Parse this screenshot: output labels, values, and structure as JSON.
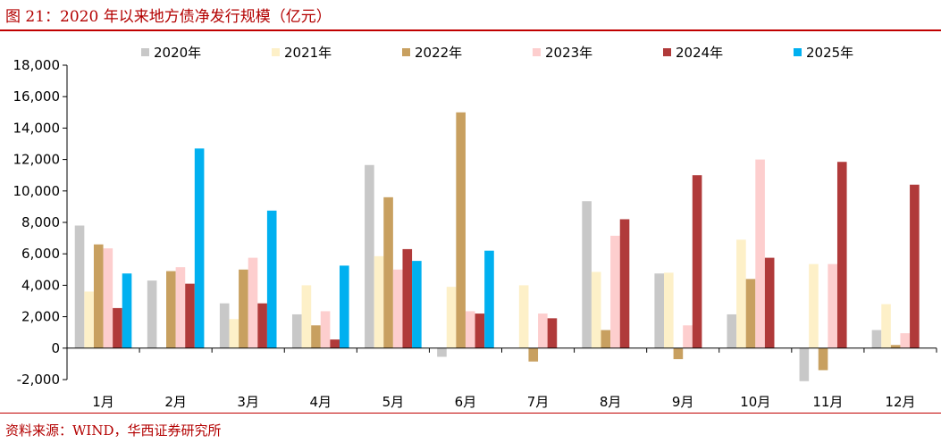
{
  "header": {
    "title": "图 21：2020 年以来地方债净发行规模（亿元）"
  },
  "footer": {
    "source": "资料来源：WIND，华西证券研究所"
  },
  "colors": {
    "rule": "#c00000",
    "series": [
      "#c8c8c8",
      "#fdf0c8",
      "#c8a060",
      "#fdcece",
      "#b03a3a",
      "#00b0f0"
    ]
  },
  "chart_data": {
    "type": "bar",
    "categories": [
      "1月",
      "2月",
      "3月",
      "4月",
      "5月",
      "6月",
      "7月",
      "8月",
      "9月",
      "10月",
      "11月",
      "12月"
    ],
    "series": [
      {
        "name": "2020年",
        "values": [
          7800,
          4300,
          2850,
          2150,
          11650,
          -550,
          null,
          9350,
          4750,
          2150,
          -2100,
          1150
        ]
      },
      {
        "name": "2021年",
        "values": [
          3600,
          null,
          1850,
          4000,
          5850,
          3900,
          4000,
          4850,
          4800,
          6900,
          5350,
          2800
        ]
      },
      {
        "name": "2022年",
        "values": [
          6600,
          4900,
          5000,
          1450,
          9600,
          15000,
          -850,
          1150,
          -700,
          4400,
          -1400,
          200
        ]
      },
      {
        "name": "2023年",
        "values": [
          6350,
          5150,
          5750,
          2350,
          5000,
          2350,
          2200,
          7150,
          1450,
          12000,
          5350,
          950
        ]
      },
      {
        "name": "2024年",
        "values": [
          2550,
          4100,
          2850,
          550,
          6300,
          2200,
          1900,
          8200,
          11000,
          5750,
          11850,
          10400
        ]
      },
      {
        "name": "2025年",
        "values": [
          4750,
          12700,
          8750,
          5250,
          5550,
          6200,
          null,
          null,
          null,
          null,
          null,
          null
        ]
      }
    ],
    "ylim": [
      -2000,
      18000
    ],
    "yticks": [
      -2000,
      0,
      2000,
      4000,
      6000,
      8000,
      10000,
      12000,
      14000,
      16000,
      18000
    ],
    "ytick_labels": [
      "-2,000",
      "0",
      "2,000",
      "4,000",
      "6,000",
      "8,000",
      "10,000",
      "12,000",
      "14,000",
      "16,000",
      "18,000"
    ],
    "legend_position": "top",
    "grid": false
  }
}
